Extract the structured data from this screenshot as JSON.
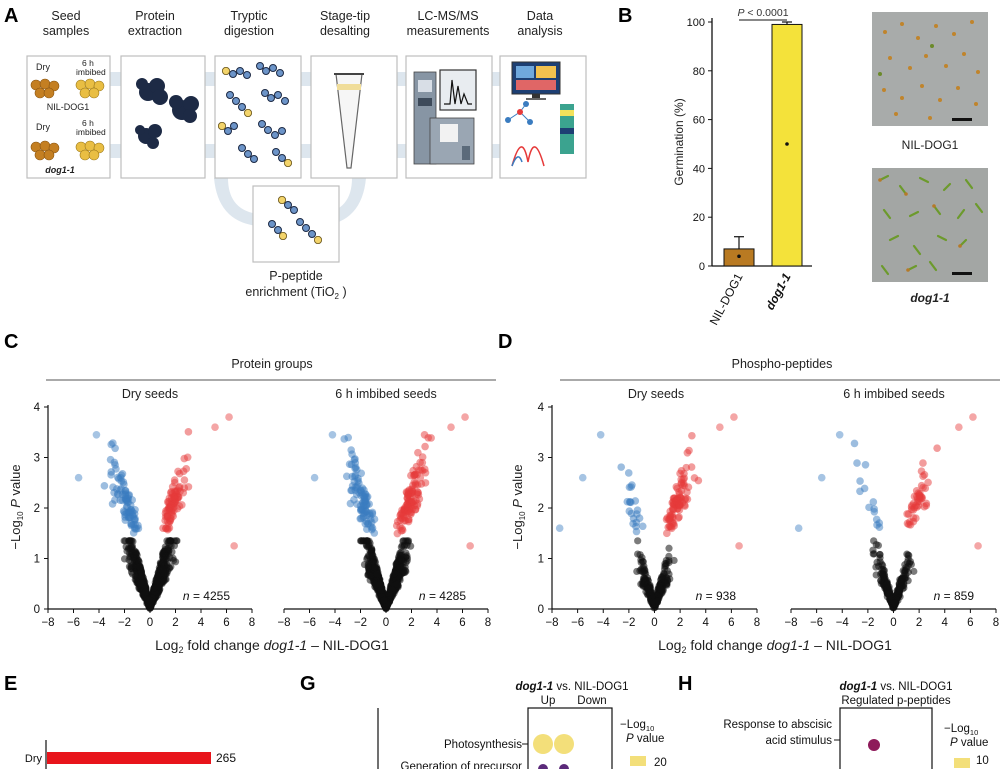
{
  "panels": {
    "a": "A",
    "b": "B",
    "c": "C",
    "d": "D",
    "e": "E",
    "g": "G",
    "h": "H"
  },
  "workflow": {
    "steps": [
      "Seed samples",
      "Protein extraction",
      "Tryptic digestion",
      "Stage-tip desalting",
      "LC-MS/MS measurements",
      "Data analysis"
    ],
    "steps_line1": [
      "Seed",
      "Protein",
      "Tryptic",
      "Stage-tip",
      "LC-MS/MS",
      "Data"
    ],
    "steps_line2": [
      "samples",
      "extraction",
      "digestion",
      "desalting",
      "measurements",
      "analysis"
    ],
    "seed_dry": "Dry",
    "seed_imbibed_1": "6 h",
    "seed_imbibed_2": "imbibed",
    "genotype_1": "NIL-DOG1",
    "genotype_2": "dog1-1",
    "enrichment_1": "P-peptide",
    "enrichment_2": "enrichment (TiO",
    "enrichment_sub": "2",
    "enrichment_end": " )"
  },
  "germination": {
    "ylabel": "Germination (%)",
    "yticks": [
      "0",
      "20",
      "40",
      "60",
      "80",
      "100"
    ],
    "categories": [
      "NIL-DOG1",
      "dog1-1"
    ],
    "values": [
      7,
      99
    ],
    "errors": [
      5,
      1
    ],
    "ylim": [
      0,
      100
    ],
    "pvalue_p": "P",
    "pvalue_rest": " < 0.0001",
    "bar_colors": [
      "#b97a22",
      "#f4e23a"
    ],
    "photo_labels": [
      "NIL-DOG1",
      "dog1-1"
    ]
  },
  "chart_data": [
    {
      "type": "scatter",
      "title": "Protein groups — Dry seeds",
      "xlim": [
        -8,
        8
      ],
      "ylim": [
        0,
        4
      ],
      "xticks": [
        "−8",
        "−6",
        "−4",
        "−2",
        "0",
        "2",
        "4",
        "6",
        "8"
      ],
      "yticks": [
        "0",
        "1",
        "2",
        "3",
        "4"
      ],
      "n_label": "n = 4255"
    },
    {
      "type": "scatter",
      "title": "Protein groups — 6 h imbibed seeds",
      "xlim": [
        -8,
        8
      ],
      "ylim": [
        0,
        4
      ],
      "n_label": "n = 4285"
    },
    {
      "type": "scatter",
      "title": "Phospho-peptides — Dry seeds",
      "xlim": [
        -8,
        8
      ],
      "ylim": [
        0,
        4
      ],
      "n_label": "n = 938"
    },
    {
      "type": "scatter",
      "title": "Phospho-peptides — 6 h imbibed seeds",
      "xlim": [
        -8,
        8
      ],
      "ylim": [
        0,
        4
      ],
      "n_label": "n = 859"
    },
    {
      "type": "bar",
      "title": "E",
      "categories": [
        "Dry"
      ],
      "values": [
        265
      ]
    }
  ],
  "volcano": {
    "group_c": "Protein groups",
    "group_d": "Phospho-peptides",
    "sub_dry": "Dry seeds",
    "sub_imb": "6 h imbibed seeds",
    "ylabel_pre": "−Log",
    "ylabel_sub": "10",
    "ylabel_p": " P",
    "ylabel_post": " value",
    "xlabel_pre": "Log",
    "xlabel_sub": "2",
    "xlabel_mid": " fold change ",
    "xlabel_it": "dog1-1",
    "xlabel_post": " – NIL-DOG1",
    "xticks": [
      "−8",
      "−6",
      "−4",
      "−2",
      "0",
      "2",
      "4",
      "6",
      "8"
    ],
    "yticks": [
      "0",
      "1",
      "2",
      "3",
      "4"
    ],
    "n_c1": "4255",
    "n_c2": "4285",
    "n_d1": "938",
    "n_d2": "859",
    "n_letter": "n",
    "colors": {
      "down": "#3a7cc0",
      "up": "#e63a3a",
      "ns": "#111111"
    }
  },
  "panel_e": {
    "category": "Dry",
    "value": "265",
    "bar_color": "#e8141b"
  },
  "panel_g": {
    "title_it": "dog1-1",
    "title_rest": " vs. NIL-DOG1",
    "up": "Up",
    "down": "Down",
    "rows": [
      "Photosynthesis",
      "Generation of precursor"
    ],
    "legend_1": "−Log",
    "legend_sub": "10",
    "legend_2": "P value",
    "legend_val": "20"
  },
  "panel_h": {
    "title_it": "dog1-1",
    "title_rest": " vs. NIL-DOG1",
    "subtitle": "Regulated p-peptides",
    "rows_1": "Response to abscisic",
    "rows_2": "acid stimulus",
    "legend_1": "−Log",
    "legend_sub": "10",
    "legend_2": "P value",
    "legend_val": "10"
  }
}
